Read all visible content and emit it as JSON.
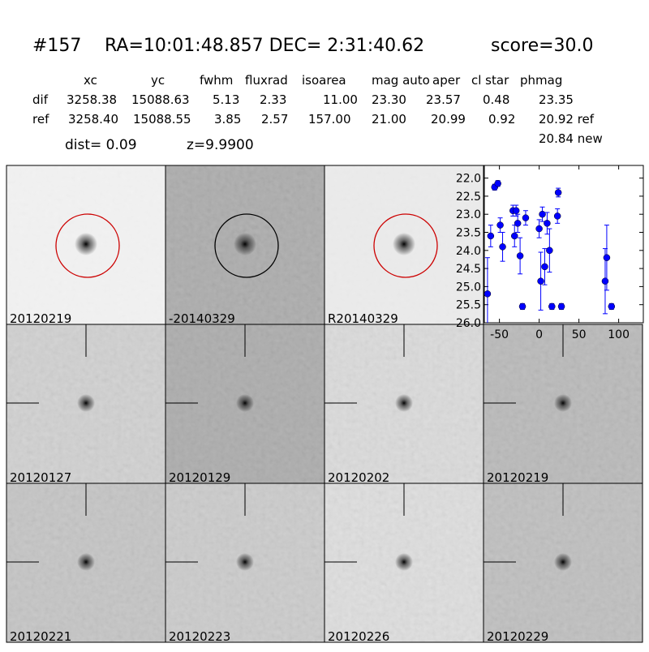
{
  "header": {
    "id": "#157",
    "coords": "RA=10:01:48.857 DEC= 2:31:40.62",
    "score": "score=30.0"
  },
  "table": {
    "columns": [
      "xc",
      "yc",
      "fwhm",
      "fluxrad",
      "isoarea",
      "mag auto",
      "aper",
      "cl star",
      "phmag"
    ],
    "rows": [
      [
        "dif",
        "3258.38",
        "15088.63",
        "5.13",
        "2.33",
        "11.00",
        "23.30",
        "23.57",
        "0.48",
        "23.35"
      ],
      [
        "ref",
        "3258.40",
        "15088.55",
        "3.85",
        "2.57",
        "157.00",
        "21.00",
        "20.99",
        "0.92",
        "20.92 ref"
      ]
    ],
    "extra": "20.84 new",
    "dist": "dist=  0.09",
    "z": "z=9.9900"
  },
  "panels": [
    {
      "label": "20120219"
    },
    {
      "label": "-20140329"
    },
    {
      "label": "R20140329"
    },
    {
      "label": "20120127"
    },
    {
      "label": "20120129"
    },
    {
      "label": "20120202"
    },
    {
      "label": "20120219",
      "color": "#ff0000"
    },
    {
      "label": "20120221"
    },
    {
      "label": "20120223"
    },
    {
      "label": "20120226"
    },
    {
      "label": "20120229"
    }
  ],
  "chart_data": {
    "type": "scatter",
    "color": "#0000ff",
    "x": [
      -65,
      -61,
      -56,
      -52,
      -49,
      -46,
      -33,
      -31,
      -29,
      -27,
      -24,
      -21,
      -17,
      0,
      2,
      4,
      7,
      10,
      13,
      16,
      23,
      24,
      28,
      83,
      85,
      91
    ],
    "values": [
      25.2,
      23.6,
      22.25,
      22.15,
      23.3,
      23.9,
      22.9,
      23.6,
      22.9,
      23.25,
      24.15,
      25.55,
      23.1,
      23.4,
      24.85,
      23.0,
      24.45,
      23.25,
      24.0,
      25.55,
      23.05,
      22.4,
      25.55,
      24.85,
      24.2,
      25.55
    ],
    "errors": [
      1.0,
      0.3,
      0.08,
      0.08,
      0.2,
      0.4,
      0.15,
      0.3,
      0.15,
      0.25,
      0.5,
      0.08,
      0.2,
      0.25,
      0.8,
      0.2,
      0.5,
      0.3,
      0.6,
      0.08,
      0.2,
      0.12,
      0.08,
      0.9,
      0.9,
      0.08
    ],
    "xlim": [
      -69,
      131
    ],
    "ylim": [
      26,
      21.65
    ],
    "xticks": [
      -50,
      0,
      50,
      100
    ],
    "yticks": [
      {
        "value": 22,
        "label": "22.0"
      },
      22.5,
      {
        "value": 23,
        "label": "23.0"
      },
      23.5,
      {
        "value": 24,
        "label": "24.0"
      },
      24.5,
      {
        "value": 25,
        "label": "25.0"
      },
      25.5,
      {
        "value": 26,
        "label": "26.0"
      }
    ]
  }
}
